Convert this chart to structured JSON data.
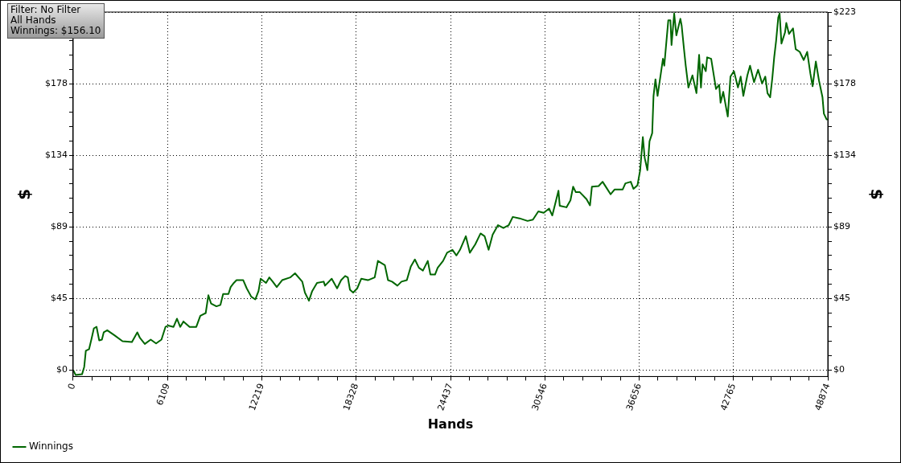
{
  "chart_data": {
    "type": "line",
    "xlabel": "Hands",
    "ylabel": "$",
    "y2label": "$",
    "annotations": [
      "Filter: No Filter",
      "All Hands",
      "Winnings: $156.10"
    ],
    "x": [
      0,
      156,
      573,
      713,
      818,
      1026,
      1199,
      1339,
      1511,
      1685,
      1860,
      1980,
      2204,
      2673,
      3195,
      3804,
      4152,
      4325,
      4638,
      5020,
      5368,
      5716,
      5976,
      6149,
      6498,
      6722,
      6931,
      7139,
      7540,
      7973,
      8233,
      8582,
      8755,
      8927,
      9276,
      9536,
      9710,
      10057,
      10198,
      10406,
      10578,
      11013,
      11240,
      11533,
      11793,
      12002,
      12142,
      12490,
      12699,
      12923,
      13184,
      13532,
      14053,
      14366,
      14835,
      15008,
      15269,
      15477,
      15790,
      16223,
      16310,
      16743,
      17092,
      17353,
      17613,
      17787,
      17926,
      18134,
      18395,
      18655,
      19089,
      19527,
      19735,
      20183,
      20391,
      20651,
      21000,
      21261,
      21609,
      21870,
      22130,
      22391,
      22651,
      22964,
      23137,
      23434,
      23606,
      23955,
      24216,
      24563,
      24823,
      25052,
      25430,
      25691,
      26040,
      26384,
      26645,
      26906,
      27166,
      27514,
      27863,
      28210,
      28471,
      28910,
      29427,
      29775,
      30125,
      30474,
      30822,
      31030,
      31430,
      31513,
      31946,
      32206,
      32380,
      32554,
      32814,
      33247,
      33472,
      33595,
      34027,
      34288,
      34548,
      34809,
      35070,
      35591,
      35764,
      36113,
      36286,
      36547,
      36721,
      36895,
      37014,
      37191,
      37327,
      37501,
      37587,
      37712,
      37848,
      38057,
      38197,
      38284,
      38457,
      38544,
      38681,
      38753,
      38925,
      39066,
      39326,
      39410,
      39551,
      39672,
      39846,
      40107,
      40367,
      40539,
      40659,
      40763,
      40972,
      41060,
      41320,
      41632,
      41841,
      41929,
      42101,
      42310,
      42397,
      42569,
      42795,
      43055,
      43232,
      43404,
      43664,
      43838,
      44098,
      44359,
      44619,
      44827,
      44968,
      45140,
      45281,
      45402,
      45526,
      45665,
      45753,
      45872,
      46101,
      46186,
      46362,
      46622,
      46795,
      47056,
      47316,
      47540,
      47749,
      47890,
      48098,
      48306,
      48531,
      48620,
      48792,
      48874
    ],
    "series": [
      {
        "name": "Winnings",
        "color": "#006600",
        "values": [
          0,
          -3,
          -2.6,
          2,
          12,
          13,
          20,
          26,
          27,
          18.5,
          19,
          23.6,
          24.8,
          21.7,
          18,
          17.5,
          23.5,
          20,
          16.3,
          19,
          16.6,
          19,
          26.9,
          27.7,
          26.9,
          32,
          26.9,
          30.3,
          26.9,
          26.9,
          33.8,
          35.5,
          46.6,
          41.5,
          39.7,
          40.6,
          47.4,
          47.4,
          51.7,
          54.3,
          56,
          56,
          50.9,
          45.7,
          44,
          49.2,
          56.9,
          54.3,
          57.7,
          55.1,
          51.7,
          56,
          57.7,
          60.3,
          55.1,
          48.3,
          43.2,
          49.2,
          54.3,
          55.1,
          52.6,
          56.9,
          50.9,
          56,
          58.6,
          57.7,
          50,
          48.3,
          50.9,
          56.9,
          56,
          57.7,
          68,
          65.4,
          56,
          55.1,
          52.6,
          55.1,
          56,
          64.6,
          68.9,
          63.7,
          62,
          68,
          59.5,
          59.5,
          63.7,
          68,
          73.1,
          74.9,
          71.4,
          74.9,
          83.4,
          73.1,
          78.3,
          85.1,
          83.4,
          74.9,
          84.3,
          90.3,
          88.5,
          90.3,
          95.4,
          94.5,
          92.9,
          93.7,
          98.8,
          98,
          100.6,
          96.3,
          111.7,
          102.3,
          101.4,
          105.7,
          114.2,
          110.8,
          110.8,
          106.5,
          102.6,
          114.2,
          114.6,
          117.3,
          113.4,
          109.5,
          112.5,
          112.5,
          116.3,
          117.3,
          112.9,
          115.1,
          124.5,
          145.1,
          132.2,
          124.5,
          142.5,
          147.6,
          170.8,
          181.1,
          170.8,
          184.5,
          193.9,
          189.6,
          208.5,
          217.9,
          217.9,
          202.5,
          222.1,
          208.5,
          218.8,
          214.5,
          200.8,
          189.6,
          176,
          183.6,
          172.5,
          196.4,
          176,
          190.5,
          186.2,
          194.8,
          193.9,
          175.1,
          177.7,
          166.5,
          173.3,
          162.2,
          157.9,
          182.8,
          186.2,
          176,
          182.8,
          170.8,
          183.6,
          189.6,
          179.3,
          187.1,
          178.5,
          182.8,
          172.5,
          169.9,
          181.9,
          194.8,
          205,
          219.6,
          222.1,
          203.4,
          210.2,
          216.2,
          209.4,
          212.8,
          199.9,
          198.2,
          193.1,
          198.2,
          184.5,
          176.8,
          192.2,
          180.2,
          169.9,
          159.7,
          156.2,
          156.1
        ]
      }
    ],
    "xlim": [
      0,
      48874
    ],
    "xticks": [
      0,
      {
        "value": 1222,
        "label": null
      },
      {
        "value": 2444,
        "label": null
      },
      {
        "value": 3666,
        "label": null
      },
      {
        "value": 4887,
        "label": null
      },
      {
        "value": 6109.25,
        "label": "6109"
      },
      {
        "value": 7331,
        "label": null
      },
      {
        "value": 8553,
        "label": null
      },
      {
        "value": 9775,
        "label": null
      },
      {
        "value": 10997,
        "label": null
      },
      {
        "value": 12218.5,
        "label": "12219"
      },
      {
        "value": 13440,
        "label": null
      },
      {
        "value": 14662,
        "label": null
      },
      {
        "value": 15884,
        "label": null
      },
      {
        "value": 17106,
        "label": null
      },
      {
        "value": 18327.75,
        "label": "18328"
      },
      {
        "value": 19550,
        "label": null
      },
      {
        "value": 20771,
        "label": null
      },
      {
        "value": 21993,
        "label": null
      },
      {
        "value": 23215,
        "label": null
      },
      {
        "value": 24437,
        "label": "24437"
      },
      {
        "value": 25659,
        "label": null
      },
      {
        "value": 26881,
        "label": null
      },
      {
        "value": 28103,
        "label": null
      },
      {
        "value": 29324,
        "label": null
      },
      {
        "value": 30546.25,
        "label": "30546"
      },
      {
        "value": 31768,
        "label": null
      },
      {
        "value": 32990,
        "label": null
      },
      {
        "value": 34212,
        "label": null
      },
      {
        "value": 35434,
        "label": null
      },
      {
        "value": 36655.5,
        "label": "36656"
      },
      {
        "value": 37877,
        "label": null
      },
      {
        "value": 39099,
        "label": null
      },
      {
        "value": 40321,
        "label": null
      },
      {
        "value": 41543,
        "label": null
      },
      {
        "value": 42764.75,
        "label": "42765"
      },
      {
        "value": 43987,
        "label": null
      },
      {
        "value": 45208,
        "label": null
      },
      {
        "value": 46430,
        "label": null
      },
      {
        "value": 47652,
        "label": null
      },
      48874
    ],
    "ylim": [
      -4,
      223
    ],
    "yticks": [
      {
        "value": 0,
        "label": "$0"
      },
      {
        "value": 8.9,
        "label": null
      },
      {
        "value": 17.8,
        "label": null
      },
      {
        "value": 26.8,
        "label": null
      },
      {
        "value": 35.7,
        "label": null
      },
      {
        "value": 44.6,
        "label": "$45"
      },
      {
        "value": 53.5,
        "label": null
      },
      {
        "value": 62.4,
        "label": null
      },
      {
        "value": 71.4,
        "label": null
      },
      {
        "value": 80.3,
        "label": null
      },
      {
        "value": 89.2,
        "label": "$89"
      },
      {
        "value": 98.1,
        "label": null
      },
      {
        "value": 107,
        "label": null
      },
      {
        "value": 116,
        "label": null
      },
      {
        "value": 124.9,
        "label": null
      },
      {
        "value": 133.8,
        "label": "$134"
      },
      {
        "value": 142.7,
        "label": null
      },
      {
        "value": 151.6,
        "label": null
      },
      {
        "value": 160.6,
        "label": null
      },
      {
        "value": 169.5,
        "label": null
      },
      {
        "value": 178.4,
        "label": "$178"
      },
      {
        "value": 187.3,
        "label": null
      },
      {
        "value": 196.2,
        "label": null
      },
      {
        "value": 205.2,
        "label": null
      },
      {
        "value": 214.1,
        "label": null
      },
      {
        "value": 223,
        "label": null
      }
    ],
    "y2lim": [
      -4,
      223
    ],
    "y2ticks": [
      {
        "value": 0,
        "label": "$0"
      },
      {
        "value": 8.9,
        "label": null
      },
      {
        "value": 17.8,
        "label": null
      },
      {
        "value": 26.8,
        "label": null
      },
      {
        "value": 35.7,
        "label": null
      },
      {
        "value": 44.6,
        "label": "$45"
      },
      {
        "value": 53.5,
        "label": null
      },
      {
        "value": 62.4,
        "label": null
      },
      {
        "value": 71.4,
        "label": null
      },
      {
        "value": 80.3,
        "label": null
      },
      {
        "value": 89.2,
        "label": "$89"
      },
      {
        "value": 98.1,
        "label": null
      },
      {
        "value": 107,
        "label": null
      },
      {
        "value": 116,
        "label": null
      },
      {
        "value": 124.9,
        "label": null
      },
      {
        "value": 133.8,
        "label": "$134"
      },
      {
        "value": 142.7,
        "label": null
      },
      {
        "value": 151.6,
        "label": null
      },
      {
        "value": 160.6,
        "label": null
      },
      {
        "value": 169.5,
        "label": null
      },
      {
        "value": 178.4,
        "label": "$178"
      },
      {
        "value": 187.3,
        "label": null
      },
      {
        "value": 196.2,
        "label": null
      },
      {
        "value": 205.2,
        "label": null
      },
      {
        "value": 214.1,
        "label": null
      },
      {
        "value": 223,
        "label": "$223"
      }
    ],
    "grid": true,
    "legend": "bottom left",
    "marker": "none",
    "line_style": "solid"
  }
}
